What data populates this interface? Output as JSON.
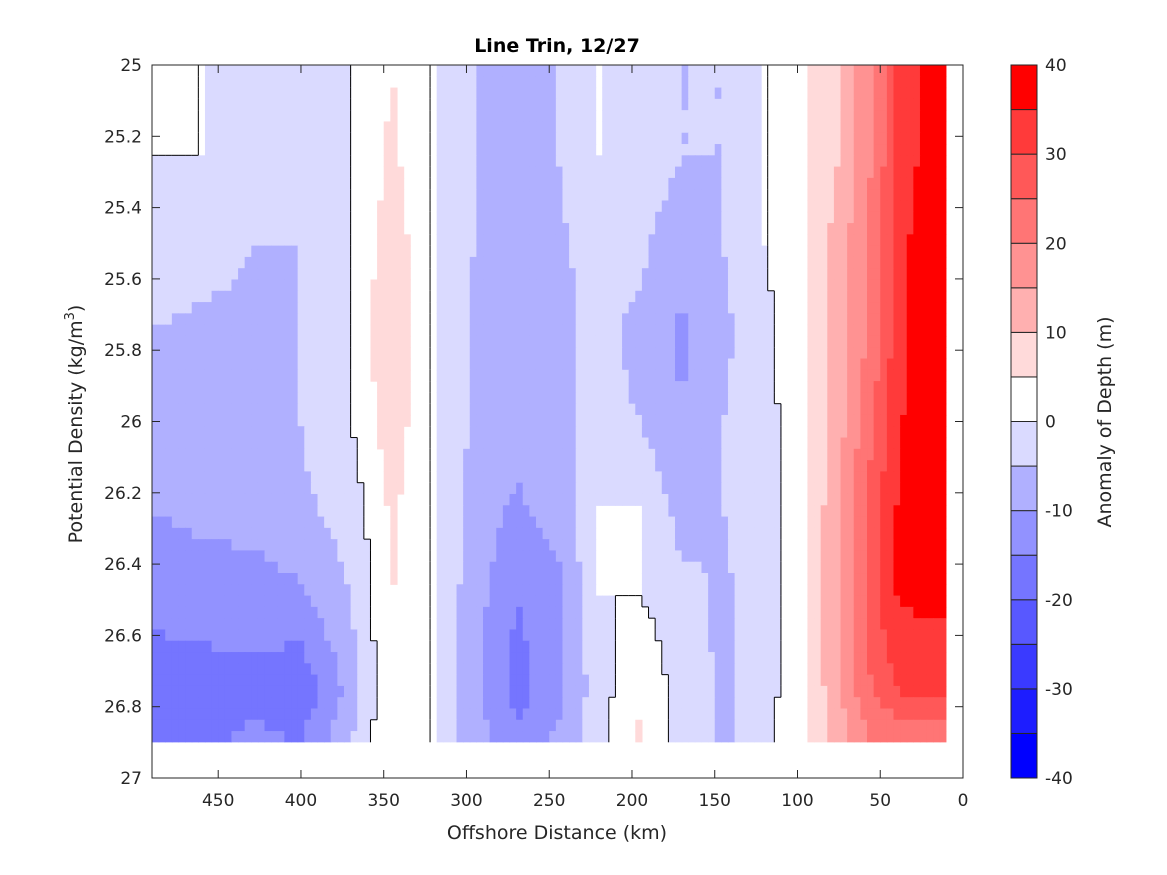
{
  "chart_data": {
    "type": "heatmap",
    "subtype": "filled-contour",
    "title": "Line Trin, 12/27",
    "xlabel": "Offshore Distance (km)",
    "ylabel": "Potential Density (kg/m",
    "ylabel_sup": "3",
    "ylabel_close": ")",
    "xlim": [
      490,
      0
    ],
    "ylim": [
      25,
      27
    ],
    "x_reversed": true,
    "y_reversed": true,
    "x_ticks": [
      {
        "value": 450,
        "label": "450"
      },
      {
        "value": 400,
        "label": "400"
      },
      {
        "value": 350,
        "label": "350"
      },
      {
        "value": 300,
        "label": "300"
      },
      {
        "value": 250,
        "label": "250"
      },
      {
        "value": 200,
        "label": "200"
      },
      {
        "value": 150,
        "label": "150"
      },
      {
        "value": 100,
        "label": "100"
      },
      {
        "value": 50,
        "label": "50"
      },
      {
        "value": 0,
        "label": "0"
      }
    ],
    "y_ticks": [
      {
        "value": 25,
        "label": "25"
      },
      {
        "value": 25.2,
        "label": "25.2"
      },
      {
        "value": 25.4,
        "label": "25.4"
      },
      {
        "value": 25.6,
        "label": "25.6"
      },
      {
        "value": 25.8,
        "label": "25.8"
      },
      {
        "value": 26,
        "label": "26"
      },
      {
        "value": 26.2,
        "label": "26.2"
      },
      {
        "value": 26.4,
        "label": "26.4"
      },
      {
        "value": 26.6,
        "label": "26.6"
      },
      {
        "value": 26.8,
        "label": "26.8"
      },
      {
        "value": 27,
        "label": "27"
      }
    ],
    "grid": false,
    "colorbar": {
      "label": "Anomaly of Depth (m)",
      "range": [
        -40,
        40
      ],
      "tick_values": [
        -40,
        -30,
        -20,
        -10,
        0,
        10,
        20,
        30,
        40
      ],
      "tick_labels": [
        "-40",
        "-30",
        "-20",
        "-10",
        "0",
        "10",
        "20",
        "30",
        "40"
      ],
      "bands": [
        {
          "range": [
            -40,
            -35
          ],
          "color": "#0000ff"
        },
        {
          "range": [
            -35,
            -30
          ],
          "color": "#1d1dff"
        },
        {
          "range": [
            -30,
            -25
          ],
          "color": "#3a3aff"
        },
        {
          "range": [
            -25,
            -20
          ],
          "color": "#5858ff"
        },
        {
          "range": [
            -20,
            -15
          ],
          "color": "#7575ff"
        },
        {
          "range": [
            -15,
            -10
          ],
          "color": "#9292ff"
        },
        {
          "range": [
            -10,
            -5
          ],
          "color": "#b0b0ff"
        },
        {
          "range": [
            -5,
            0
          ],
          "color": "#dadaff"
        },
        {
          "range": [
            0,
            5
          ],
          "color": "#ffffff"
        },
        {
          "range": [
            5,
            10
          ],
          "color": "#ffdada"
        },
        {
          "range": [
            10,
            15
          ],
          "color": "#ffb0b0"
        },
        {
          "range": [
            15,
            20
          ],
          "color": "#ff9292"
        },
        {
          "range": [
            20,
            25
          ],
          "color": "#ff7575"
        },
        {
          "range": [
            25,
            30
          ],
          "color": "#ff5858"
        },
        {
          "range": [
            30,
            35
          ],
          "color": "#ff3a3a"
        },
        {
          "range": [
            35,
            40
          ],
          "color": "#ff0000"
        }
      ]
    },
    "data_extent": {
      "x": [
        490,
        10
      ],
      "y": [
        25,
        26.9
      ]
    },
    "anomaly_grid": {
      "x": [
        490,
        460,
        430,
        400,
        370,
        345,
        320,
        295,
        270,
        245,
        220,
        195,
        170,
        145,
        120,
        95,
        75,
        55,
        40,
        25,
        10
      ],
      "y": [
        25,
        25.25,
        25.5,
        25.75,
        26,
        26.25,
        26.5,
        26.75,
        26.9
      ],
      "values": [
        [
          5,
          0,
          0,
          0,
          0,
          5,
          0,
          -5,
          -5,
          -5,
          0,
          0,
          -5,
          -5,
          0,
          5,
          10,
          20,
          30,
          35,
          38
        ],
        [
          0,
          0,
          -3,
          -5,
          0,
          6,
          0,
          -5,
          -6,
          -5,
          0,
          -2,
          -5,
          -5,
          0,
          5,
          10,
          20,
          30,
          36,
          38
        ],
        [
          -3,
          -3,
          -5,
          -5,
          0,
          8,
          0,
          -5,
          -7,
          -6,
          -3,
          -4,
          -8,
          -5,
          0,
          5,
          12,
          22,
          32,
          38,
          39
        ],
        [
          -5,
          -6,
          -6,
          -5,
          0,
          10,
          0,
          -6,
          -7,
          -6,
          -4,
          -6,
          -11,
          -6,
          -2,
          5,
          12,
          22,
          32,
          38,
          39
        ],
        [
          -6,
          -7,
          -6,
          -5,
          0,
          8,
          0,
          -6,
          -8,
          -6,
          -4,
          -5,
          -10,
          -5,
          -2,
          4,
          13,
          24,
          34,
          38,
          39
        ],
        [
          -10,
          -9,
          -8,
          -6,
          -3,
          6,
          0,
          -7,
          -11,
          -8,
          0,
          0,
          -7,
          -5,
          -2,
          4,
          15,
          28,
          35,
          38,
          38
        ],
        [
          -14,
          -12,
          -13,
          -11,
          -5,
          5,
          0,
          -8,
          -15,
          -12,
          0,
          0,
          -3,
          -6,
          -2,
          4,
          15,
          28,
          35,
          36,
          36
        ],
        [
          -17,
          -18,
          -16,
          -19,
          -8,
          5,
          0,
          -8,
          -17,
          -12,
          -2,
          4,
          -2,
          -6,
          -2,
          4,
          15,
          25,
          30,
          32,
          32
        ],
        [
          -15,
          -16,
          -14,
          -15,
          -5,
          5,
          0,
          -8,
          -14,
          -9,
          -2,
          6,
          -2,
          -6,
          -2,
          5,
          12,
          20,
          20,
          20,
          20
        ]
      ]
    }
  }
}
